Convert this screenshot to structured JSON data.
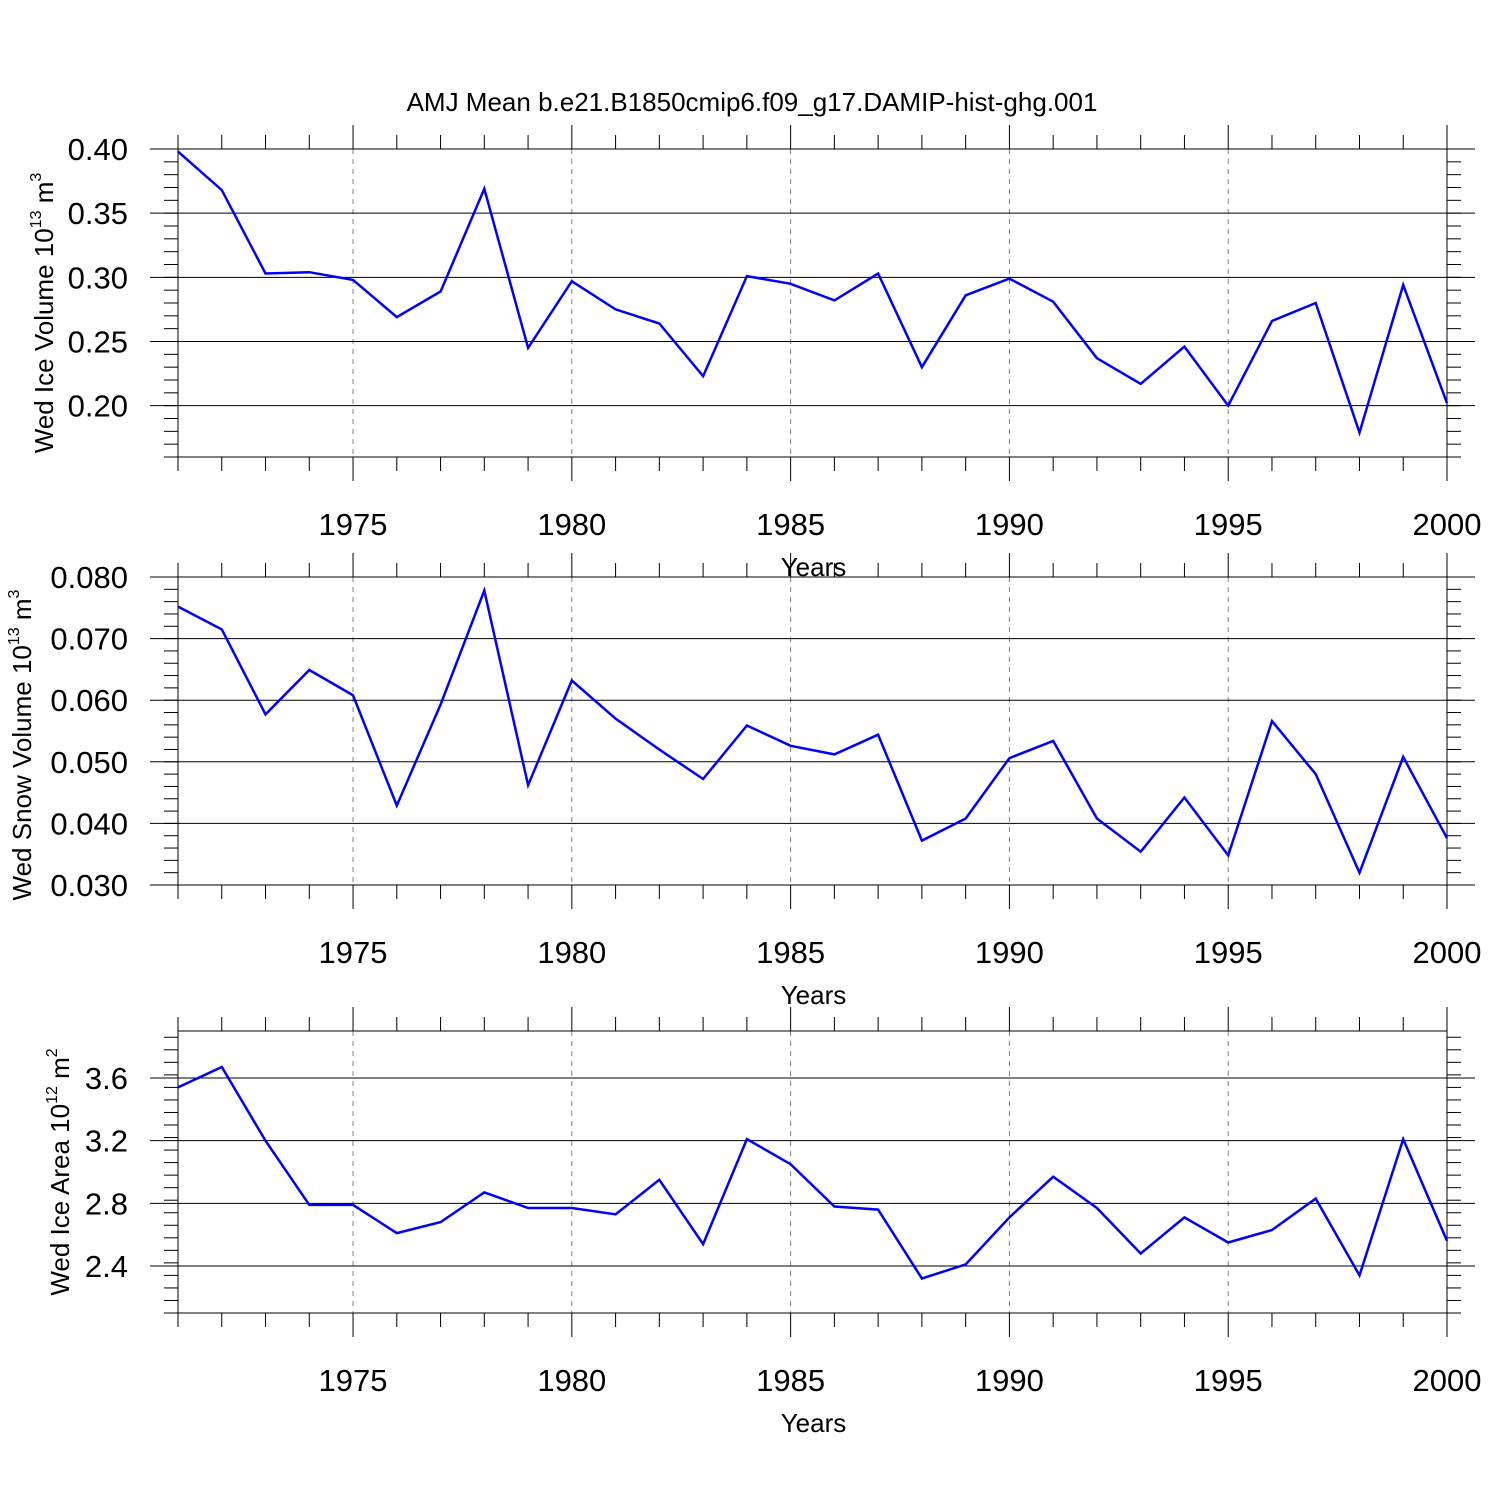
{
  "title": "AMJ Mean b.e21.B1850cmip6.f09_g17.DAMIP-hist-ghg.001",
  "colors": {
    "line": "#0000ff",
    "axis": "#000000",
    "grid": "#808080"
  },
  "chart_data": [
    {
      "type": "line",
      "xlabel": "Years",
      "ylabel": {
        "text": "Wed Ice Volume 10",
        "exp": "13",
        "unit": " m",
        "unit_exp": "3"
      },
      "xlim": [
        1971,
        2000
      ],
      "ylim": [
        0.16,
        0.4
      ],
      "xticks": [
        1975,
        1980,
        1985,
        1990,
        1995,
        2000
      ],
      "xtick_labels": [
        "1975",
        "1980",
        "1985",
        "1990",
        "1995",
        "2000"
      ],
      "yticks": [
        0.2,
        0.25,
        0.3,
        0.35,
        0.4
      ],
      "ytick_labels": [
        "0.20",
        "0.25",
        "0.30",
        "0.35",
        "0.40"
      ],
      "grid": "x-dashed",
      "x": [
        1971,
        1972,
        1973,
        1974,
        1975,
        1976,
        1977,
        1978,
        1979,
        1980,
        1981,
        1982,
        1983,
        1984,
        1985,
        1986,
        1987,
        1988,
        1989,
        1990,
        1991,
        1992,
        1993,
        1994,
        1995,
        1996,
        1997,
        1998,
        1999,
        2000
      ],
      "series": [
        {
          "values": [
            0.398,
            0.368,
            0.303,
            0.304,
            0.298,
            0.269,
            0.289,
            0.369,
            0.245,
            0.297,
            0.275,
            0.264,
            0.223,
            0.301,
            0.295,
            0.282,
            0.303,
            0.23,
            0.286,
            0.299,
            0.281,
            0.237,
            0.217,
            0.246,
            0.2,
            0.266,
            0.28,
            0.179,
            0.294,
            0.202
          ]
        }
      ]
    },
    {
      "type": "line",
      "xlabel": "Years",
      "ylabel": {
        "text": "Wed Snow Volume 10",
        "exp": "13",
        "unit": " m",
        "unit_exp": "3"
      },
      "xlim": [
        1971,
        2000
      ],
      "ylim": [
        0.03,
        0.08
      ],
      "xticks": [
        1975,
        1980,
        1985,
        1990,
        1995,
        2000
      ],
      "xtick_labels": [
        "1975",
        "1980",
        "1985",
        "1990",
        "1995",
        "2000"
      ],
      "yticks": [
        0.03,
        0.04,
        0.05,
        0.06,
        0.07,
        0.08
      ],
      "ytick_labels": [
        "0.030",
        "0.040",
        "0.050",
        "0.060",
        "0.070",
        "0.080"
      ],
      "grid": "x-dashed",
      "x": [
        1971,
        1972,
        1973,
        1974,
        1975,
        1976,
        1977,
        1978,
        1979,
        1980,
        1981,
        1982,
        1983,
        1984,
        1985,
        1986,
        1987,
        1988,
        1989,
        1990,
        1991,
        1992,
        1993,
        1994,
        1995,
        1996,
        1997,
        1998,
        1999,
        2000
      ],
      "series": [
        {
          "values": [
            0.0752,
            0.0715,
            0.0577,
            0.0649,
            0.0608,
            0.0429,
            0.0593,
            0.0778,
            0.0462,
            0.0632,
            0.057,
            0.052,
            0.0472,
            0.0559,
            0.0526,
            0.0512,
            0.0544,
            0.0372,
            0.0408,
            0.0506,
            0.0534,
            0.0408,
            0.0354,
            0.0442,
            0.0348,
            0.0566,
            0.048,
            0.032,
            0.0508,
            0.0376
          ]
        }
      ]
    },
    {
      "type": "line",
      "xlabel": "Years",
      "ylabel": {
        "text": "Wed Ice Area 10",
        "exp": "12",
        "unit": " m",
        "unit_exp": "2"
      },
      "xlim": [
        1971,
        2000
      ],
      "ylim": [
        2.1,
        3.9
      ],
      "xticks": [
        1975,
        1980,
        1985,
        1990,
        1995,
        2000
      ],
      "xtick_labels": [
        "1975",
        "1980",
        "1985",
        "1990",
        "1995",
        "2000"
      ],
      "yticks": [
        2.4,
        2.8,
        3.2,
        3.6
      ],
      "ytick_labels": [
        "2.4",
        "2.8",
        "3.2",
        "3.6"
      ],
      "grid": "x-dashed",
      "x": [
        1971,
        1972,
        1973,
        1974,
        1975,
        1976,
        1977,
        1978,
        1979,
        1980,
        1981,
        1982,
        1983,
        1984,
        1985,
        1986,
        1987,
        1988,
        1989,
        1990,
        1991,
        1992,
        1993,
        1994,
        1995,
        1996,
        1997,
        1998,
        1999,
        2000
      ],
      "series": [
        {
          "values": [
            3.54,
            3.67,
            3.2,
            2.79,
            2.79,
            2.61,
            2.68,
            2.87,
            2.77,
            2.77,
            2.73,
            2.95,
            2.54,
            3.21,
            3.05,
            2.78,
            2.76,
            2.32,
            2.41,
            2.71,
            2.97,
            2.77,
            2.48,
            2.71,
            2.55,
            2.63,
            2.83,
            2.34,
            3.21,
            2.56
          ]
        }
      ]
    }
  ]
}
